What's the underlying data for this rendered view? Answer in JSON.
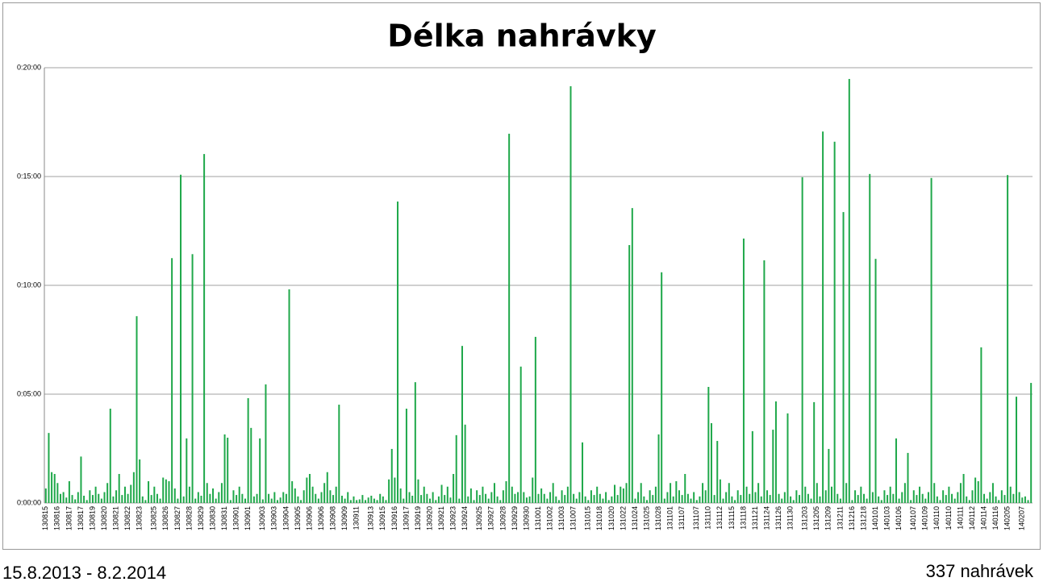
{
  "chart_data": {
    "type": "bar",
    "title": "Délka nahrávky",
    "date_range": "15.8.2013 - 8.2.2014",
    "count_label": "337 nahrávek",
    "color": "#1fa84a",
    "grid": true,
    "ylim": [
      0,
      1200
    ],
    "yticks": [
      {
        "value": 0,
        "label": "0:00:00"
      },
      {
        "value": 300,
        "label": "0:05:00"
      },
      {
        "value": 600,
        "label": "0:10:00"
      },
      {
        "value": 900,
        "label": "0:15:00"
      },
      {
        "value": 1200,
        "label": "0:20:00"
      }
    ],
    "categories": [
      "130815",
      null,
      null,
      null,
      "130816",
      null,
      null,
      null,
      "130817",
      null,
      null,
      null,
      "130817",
      null,
      null,
      null,
      "130819",
      null,
      null,
      null,
      "130820",
      null,
      null,
      null,
      "130821",
      null,
      null,
      null,
      "130822",
      null,
      null,
      null,
      "130823",
      null,
      null,
      null,
      null,
      "130825",
      null,
      null,
      null,
      "130826",
      null,
      null,
      null,
      "130827",
      null,
      null,
      null,
      "130828",
      null,
      null,
      null,
      "130829",
      null,
      null,
      null,
      "130830",
      null,
      null,
      null,
      "130831",
      null,
      null,
      null,
      "130901",
      null,
      null,
      null,
      "130901",
      null,
      null,
      null,
      null,
      "130903",
      null,
      null,
      null,
      "130903",
      null,
      null,
      null,
      "130904",
      null,
      null,
      null,
      "130905",
      null,
      null,
      null,
      "130906",
      null,
      null,
      null,
      "130906",
      null,
      null,
      null,
      "130908",
      null,
      null,
      null,
      "130909",
      null,
      null,
      null,
      "130911",
      null,
      null,
      null,
      null,
      "130913",
      null,
      null,
      null,
      "130915",
      null,
      null,
      null,
      "130916",
      null,
      null,
      null,
      "130917",
      null,
      null,
      null,
      "130919",
      null,
      null,
      null,
      "130920",
      null,
      null,
      null,
      "130921",
      null,
      null,
      null,
      "130923",
      null,
      null,
      null,
      "130924",
      null,
      null,
      null,
      null,
      "130925",
      null,
      null,
      null,
      "130927",
      null,
      null,
      null,
      "130928",
      null,
      null,
      null,
      "130929",
      null,
      null,
      null,
      "130930",
      null,
      null,
      null,
      "131001",
      null,
      null,
      null,
      "131002",
      null,
      null,
      null,
      "131003",
      null,
      null,
      null,
      "131007",
      null,
      null,
      null,
      null,
      "131015",
      null,
      null,
      null,
      "131018",
      null,
      null,
      null,
      "131020",
      null,
      null,
      null,
      "131022",
      null,
      null,
      null,
      "131024",
      null,
      null,
      null,
      "131025",
      null,
      null,
      null,
      "131028",
      null,
      null,
      null,
      "131101",
      null,
      null,
      null,
      "131107",
      null,
      null,
      null,
      null,
      "131107",
      null,
      null,
      null,
      "131110",
      null,
      null,
      null,
      "131112",
      null,
      null,
      null,
      "131115",
      null,
      null,
      null,
      "131118",
      null,
      null,
      null,
      "131121",
      null,
      null,
      null,
      "131124",
      null,
      null,
      null,
      "131126",
      null,
      null,
      null,
      "131130",
      null,
      null,
      null,
      null,
      "131203",
      null,
      null,
      null,
      "131205",
      null,
      null,
      null,
      "131209",
      null,
      null,
      null,
      "131211",
      null,
      null,
      null,
      "131216",
      null,
      null,
      null,
      "131218",
      null,
      null,
      null,
      "140101",
      null,
      null,
      null,
      "140103",
      null,
      null,
      null,
      "140106",
      null,
      null,
      null,
      null,
      "140107",
      null,
      null,
      null,
      "140109",
      null,
      null,
      null,
      "140110",
      null,
      null,
      null,
      "140110",
      null,
      null,
      null,
      "140111",
      null,
      null,
      null,
      "140112",
      null,
      null,
      null,
      "140114",
      null,
      null,
      null,
      "140116",
      null,
      null,
      null,
      "140205",
      null,
      null,
      null,
      null,
      "140207",
      null,
      null,
      null
    ],
    "values": [
      40,
      193,
      85,
      80,
      55,
      25,
      30,
      15,
      60,
      22,
      10,
      30,
      128,
      20,
      8,
      35,
      22,
      45,
      25,
      12,
      30,
      55,
      260,
      18,
      35,
      80,
      22,
      45,
      25,
      50,
      85,
      515,
      120,
      18,
      8,
      60,
      22,
      45,
      25,
      12,
      70,
      65,
      60,
      675,
      40,
      12,
      905,
      18,
      178,
      45,
      686,
      12,
      30,
      20,
      962,
      55,
      25,
      40,
      12,
      30,
      55,
      189,
      180,
      8,
      35,
      22,
      45,
      25,
      12,
      289,
      207,
      18,
      25,
      178,
      10,
      327,
      25,
      12,
      30,
      8,
      15,
      30,
      25,
      589,
      60,
      40,
      18,
      8,
      35,
      70,
      80,
      45,
      25,
      12,
      30,
      55,
      85,
      35,
      22,
      45,
      271,
      20,
      12,
      30,
      8,
      18,
      8,
      10,
      22,
      8,
      15,
      20,
      12,
      8,
      25,
      18,
      8,
      65,
      149,
      70,
      831,
      40,
      12,
      260,
      30,
      20,
      333,
      65,
      22,
      45,
      25,
      12,
      30,
      8,
      18,
      50,
      22,
      45,
      15,
      80,
      187,
      12,
      433,
      216,
      18,
      40,
      8,
      35,
      22,
      45,
      25,
      12,
      30,
      55,
      18,
      8,
      35,
      60,
      1018,
      45,
      25,
      30,
      376,
      30,
      15,
      18,
      70,
      458,
      25,
      40,
      25,
      12,
      30,
      55,
      18,
      8,
      35,
      22,
      45,
      1149,
      25,
      12,
      30,
      167,
      18,
      8,
      35,
      22,
      45,
      25,
      12,
      30,
      8,
      18,
      50,
      22,
      45,
      40,
      55,
      711,
      813,
      12,
      30,
      55,
      18,
      8,
      35,
      22,
      45,
      189,
      636,
      12,
      30,
      55,
      18,
      60,
      35,
      22,
      80,
      25,
      12,
      30,
      8,
      18,
      55,
      35,
      320,
      220,
      22,
      171,
      65,
      12,
      30,
      55,
      18,
      8,
      35,
      22,
      729,
      45,
      25,
      198,
      30,
      55,
      18,
      669,
      35,
      22,
      202,
      280,
      25,
      12,
      30,
      247,
      18,
      8,
      35,
      22,
      898,
      45,
      25,
      12,
      278,
      55,
      18,
      1024,
      35,
      149,
      45,
      996,
      25,
      12,
      802,
      55,
      1169,
      8,
      35,
      22,
      45,
      25,
      12,
      907,
      30,
      673,
      18,
      8,
      35,
      22,
      45,
      25,
      178,
      12,
      30,
      55,
      138,
      8,
      35,
      22,
      45,
      25,
      12,
      30,
      896,
      55,
      18,
      8,
      35,
      22,
      45,
      25,
      12,
      30,
      55,
      80,
      18,
      8,
      35,
      70,
      60,
      429,
      25,
      12,
      30,
      55,
      18,
      8,
      35,
      22,
      904,
      45,
      25,
      293,
      30,
      15,
      18,
      8,
      331
    ]
  }
}
